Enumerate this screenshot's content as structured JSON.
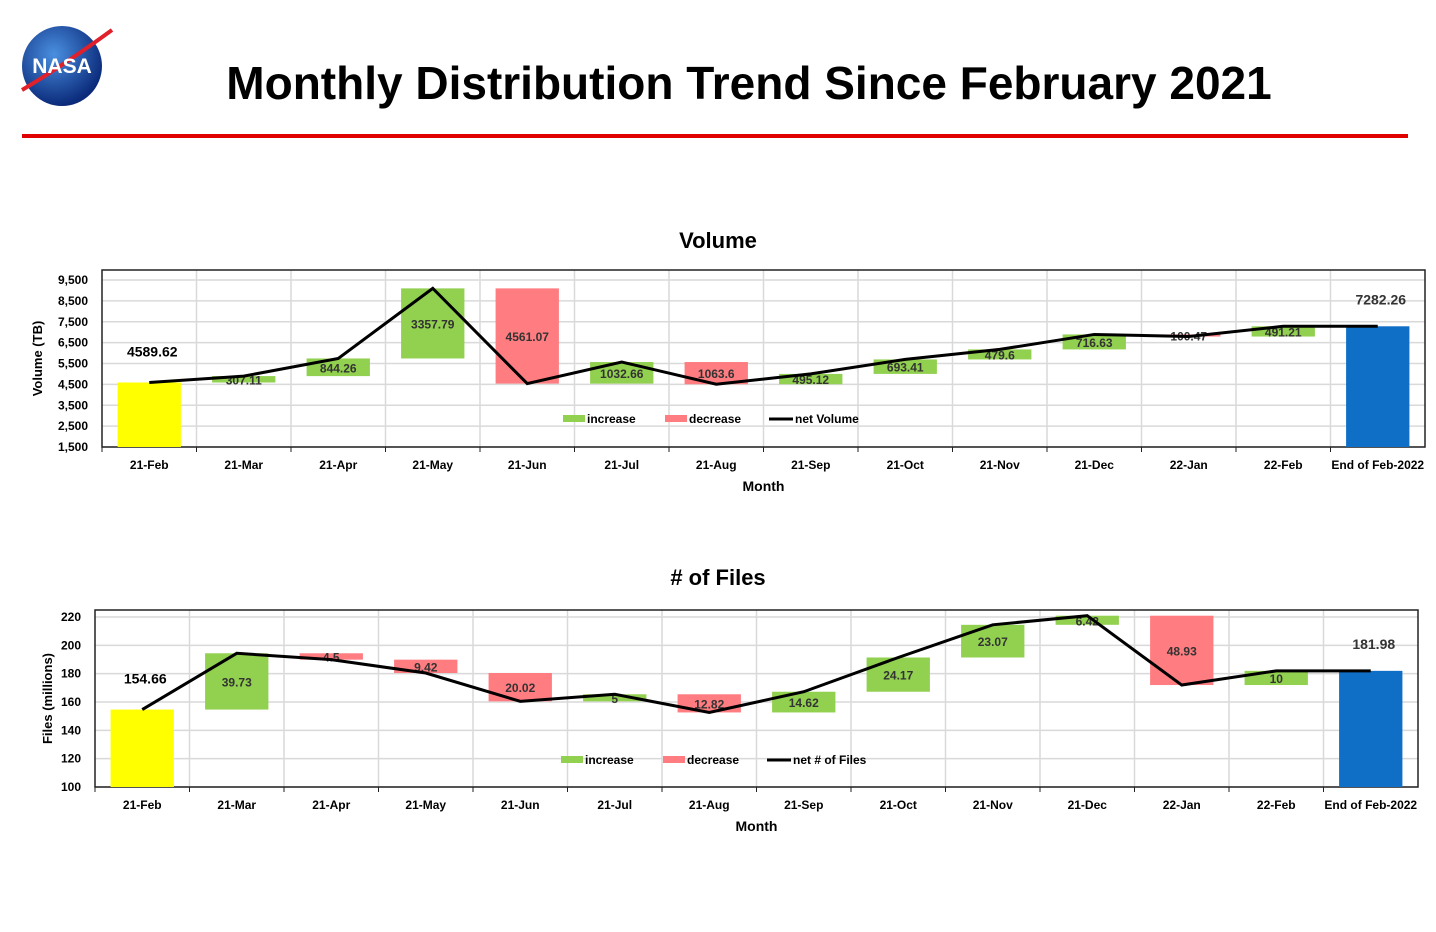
{
  "header": {
    "title": "Monthly Distribution Trend Since February 2021",
    "logo_text": "NASA"
  },
  "colors": {
    "increase": "#92d050",
    "decrease": "#ff7c80",
    "start": "#ffff00",
    "end": "#0f6fc6",
    "rule": "#e00000",
    "line": "#000000"
  },
  "chart_data": [
    {
      "type": "waterfall",
      "title": "Volume",
      "xlabel": "Month",
      "ylabel": "Volume (TB)",
      "ylim": [
        1500,
        9500
      ],
      "yticks": [
        "1,500",
        "2,500",
        "3,500",
        "4,500",
        "5,500",
        "6,500",
        "7,500",
        "8,500",
        "9,500"
      ],
      "ytick_values": [
        1500,
        2500,
        3500,
        4500,
        5500,
        6500,
        7500,
        8500,
        9500
      ],
      "categories": [
        "21-Feb",
        "21-Mar",
        "21-Apr",
        "21-May",
        "21-Jun",
        "21-Jul",
        "21-Aug",
        "21-Sep",
        "21-Oct",
        "21-Nov",
        "21-Dec",
        "22-Jan",
        "22-Feb",
        "End of Feb-2022"
      ],
      "start_value": 4589.62,
      "changes": [
        307.11,
        844.26,
        3357.79,
        -4561.07,
        1032.66,
        -1063.6,
        495.12,
        693.41,
        479.6,
        716.63,
        -100.47,
        491.21
      ],
      "labels": [
        "4589.62",
        "307.11",
        "844.26",
        "3357.79",
        "4561.07",
        "1032.66",
        "1063.6",
        "495.12",
        "693.41",
        "479.6",
        "716.63",
        "100.47",
        "491.21",
        "7282.26"
      ],
      "end_value": 7282.26,
      "legend": [
        "increase",
        "decrease",
        "net Volume"
      ],
      "grid": true
    },
    {
      "type": "waterfall",
      "title": "# of Files",
      "xlabel": "Month",
      "ylabel": "Files (millions)",
      "ylim": [
        100,
        220
      ],
      "yticks": [
        "100",
        "120",
        "140",
        "160",
        "180",
        "200",
        "220"
      ],
      "ytick_values": [
        100,
        120,
        140,
        160,
        180,
        200,
        220
      ],
      "categories": [
        "21-Feb",
        "21-Mar",
        "21-Apr",
        "21-May",
        "21-Jun",
        "21-Jul",
        "21-Aug",
        "21-Sep",
        "21-Oct",
        "21-Nov",
        "21-Dec",
        "22-Jan",
        "22-Feb",
        "End of Feb-2022"
      ],
      "start_value": 154.66,
      "changes": [
        39.73,
        -4.5,
        -9.42,
        -20.02,
        5,
        -12.82,
        14.62,
        24.17,
        23.07,
        6.42,
        -48.93,
        10
      ],
      "labels": [
        "154.66",
        "39.73",
        "4.5",
        "9.42",
        "20.02",
        "5",
        "12.82",
        "14.62",
        "24.17",
        "23.07",
        "6.42",
        "48.93",
        "10",
        "181.98"
      ],
      "end_value": 181.98,
      "legend": [
        "increase",
        "decrease",
        "net # of Files"
      ],
      "grid": true
    }
  ]
}
